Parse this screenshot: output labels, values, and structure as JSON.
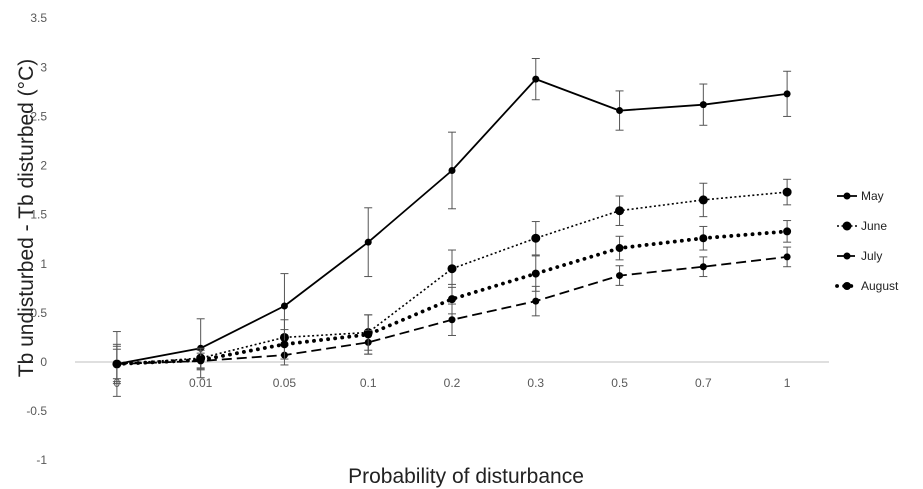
{
  "chart_data": {
    "type": "line",
    "title": "",
    "xlabel": "Probability of disturbance",
    "ylabel": "Tb undisturbed - Tb disturbed (°C)",
    "ylim": [
      -1,
      3.5
    ],
    "yticks": [
      "-1",
      "-0.5",
      "0",
      "0.5",
      "1",
      "1.5",
      "2",
      "2.5",
      "3",
      "3.5"
    ],
    "categories": [
      "0",
      "0.01",
      "0.05",
      "0.1",
      "0.2",
      "0.3",
      "0.5",
      "0.7",
      "1"
    ],
    "grid": false,
    "legend_position": "right",
    "series": [
      {
        "name": "May",
        "style": "solid",
        "values": [
          -0.02,
          0.14,
          0.57,
          1.22,
          1.95,
          2.88,
          2.56,
          2.62,
          2.73
        ],
        "errors": [
          0.33,
          0.3,
          0.33,
          0.35,
          0.39,
          0.21,
          0.2,
          0.21,
          0.23
        ]
      },
      {
        "name": "June",
        "style": "dotted",
        "values": [
          -0.02,
          0.04,
          0.25,
          0.3,
          0.95,
          1.26,
          1.54,
          1.65,
          1.73
        ],
        "errors": [
          0.2,
          0.1,
          0.18,
          0.18,
          0.19,
          0.17,
          0.15,
          0.17,
          0.13
        ]
      },
      {
        "name": "July",
        "style": "dashed",
        "values": [
          -0.02,
          0.01,
          0.07,
          0.2,
          0.43,
          0.62,
          0.88,
          0.97,
          1.07
        ],
        "errors": [
          0.15,
          0.08,
          0.1,
          0.12,
          0.16,
          0.15,
          0.1,
          0.1,
          0.1
        ]
      },
      {
        "name": "August",
        "style": "round-dotted",
        "values": [
          -0.02,
          0.02,
          0.18,
          0.28,
          0.64,
          0.9,
          1.16,
          1.26,
          1.33
        ],
        "errors": [
          0.18,
          0.1,
          0.15,
          0.2,
          0.15,
          0.18,
          0.12,
          0.12,
          0.11
        ]
      }
    ]
  }
}
